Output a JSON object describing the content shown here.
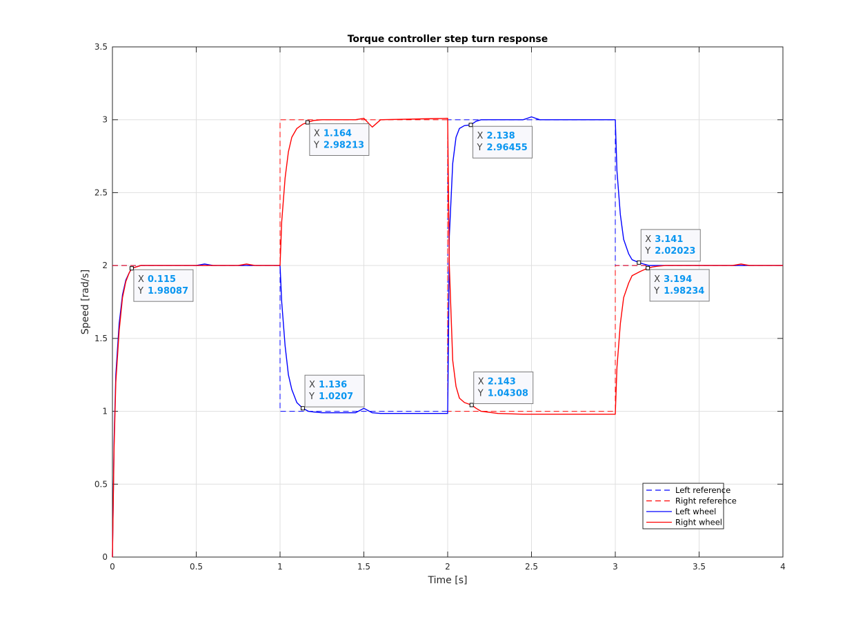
{
  "chart_data": {
    "type": "line",
    "title": "Torque controller step turn response",
    "xlabel": "Time [s]",
    "ylabel": "Speed [rad/s]",
    "xlim": [
      0,
      4
    ],
    "ylim": [
      0,
      3.5
    ],
    "xticks": [
      0,
      0.5,
      1,
      1.5,
      2,
      2.5,
      3,
      3.5,
      4
    ],
    "xtick_labels": [
      "0",
      "0.5",
      "1",
      "1.5",
      "2",
      "2.5",
      "3",
      "3.5",
      "4"
    ],
    "yticks": [
      0,
      0.5,
      1,
      1.5,
      2,
      2.5,
      3,
      3.5
    ],
    "ytick_labels": [
      "0",
      "0.5",
      "1",
      "1.5",
      "2",
      "2.5",
      "3",
      "3.5"
    ],
    "grid": true,
    "legend_position": "bottom-right",
    "series": [
      {
        "name": "Left reference",
        "color": "#0000ff",
        "style": "dashed",
        "x": [
          0,
          1,
          1,
          2,
          2,
          3,
          3,
          4
        ],
        "y": [
          2,
          2,
          1,
          1,
          3,
          3,
          2,
          2
        ]
      },
      {
        "name": "Right reference",
        "color": "#ff0000",
        "style": "dashed",
        "x": [
          0,
          1,
          1,
          2,
          2,
          3,
          3,
          4
        ],
        "y": [
          2,
          2,
          3,
          3,
          1,
          1,
          2,
          2
        ]
      },
      {
        "name": "Left wheel",
        "color": "#0000ff",
        "style": "solid",
        "x": [
          0,
          0.01,
          0.02,
          0.04,
          0.06,
          0.08,
          0.1,
          0.115,
          0.14,
          0.17,
          0.2,
          0.25,
          0.3,
          0.5,
          0.55,
          0.6,
          1.0,
          1.01,
          1.03,
          1.05,
          1.07,
          1.1,
          1.136,
          1.17,
          1.2,
          1.25,
          1.3,
          1.45,
          1.5,
          1.55,
          1.6,
          2.0,
          2.005,
          2.01,
          2.03,
          2.05,
          2.07,
          2.1,
          2.138,
          2.17,
          2.2,
          2.3,
          2.45,
          2.5,
          2.55,
          2.6,
          2.99,
          3.0,
          3.01,
          3.03,
          3.05,
          3.08,
          3.1,
          3.141,
          3.17,
          3.2,
          3.25,
          3.3,
          4.0
        ],
        "y": [
          0,
          0.8,
          1.25,
          1.6,
          1.8,
          1.9,
          1.95,
          1.98,
          1.99,
          2.0,
          2.0,
          2.0,
          2.0,
          2.0,
          2.01,
          2.0,
          2.0,
          1.75,
          1.45,
          1.25,
          1.15,
          1.06,
          1.02,
          1.0,
          0.995,
          0.99,
          0.99,
          0.99,
          1.02,
          0.99,
          0.985,
          0.985,
          1.5,
          2.2,
          2.7,
          2.88,
          2.94,
          2.96,
          2.965,
          2.99,
          3.0,
          3.0,
          3.0,
          3.02,
          3.0,
          3.0,
          3.0,
          3.0,
          2.65,
          2.35,
          2.18,
          2.08,
          2.04,
          2.02,
          2.01,
          2.0,
          2.0,
          2.0,
          2.0
        ]
      },
      {
        "name": "Right wheel",
        "color": "#ff0000",
        "style": "solid",
        "x": [
          0,
          0.01,
          0.02,
          0.04,
          0.06,
          0.08,
          0.1,
          0.115,
          0.14,
          0.17,
          0.2,
          0.25,
          0.3,
          0.5,
          0.55,
          0.6,
          0.75,
          0.8,
          0.85,
          1.0,
          1.01,
          1.03,
          1.05,
          1.07,
          1.1,
          1.136,
          1.164,
          1.2,
          1.25,
          1.3,
          1.45,
          1.5,
          1.55,
          1.6,
          2.0,
          2.005,
          2.01,
          2.03,
          2.05,
          2.07,
          2.1,
          2.143,
          2.17,
          2.2,
          2.3,
          2.45,
          2.5,
          2.55,
          2.99,
          3.0,
          3.01,
          3.03,
          3.05,
          3.08,
          3.1,
          3.15,
          3.194,
          3.22,
          3.25,
          3.3,
          3.7,
          3.75,
          3.8,
          4.0
        ],
        "y": [
          0,
          0.75,
          1.2,
          1.55,
          1.78,
          1.89,
          1.95,
          1.98,
          1.99,
          2.0,
          2.0,
          2.0,
          2.0,
          2.0,
          2.0,
          2.0,
          2.0,
          2.01,
          2.0,
          2.0,
          2.3,
          2.6,
          2.78,
          2.88,
          2.94,
          2.97,
          2.982,
          2.995,
          3.0,
          3.0,
          3.0,
          3.01,
          2.95,
          3.0,
          3.01,
          2.5,
          2.0,
          1.35,
          1.17,
          1.09,
          1.06,
          1.043,
          1.02,
          1.0,
          0.985,
          0.98,
          0.98,
          0.98,
          0.98,
          0.98,
          1.3,
          1.6,
          1.78,
          1.88,
          1.93,
          1.96,
          1.982,
          1.99,
          1.995,
          2.0,
          2.0,
          2.01,
          2.0,
          2.0
        ]
      }
    ],
    "annotations": [
      {
        "x_label": "X",
        "x_value": "0.115",
        "y_label": "Y",
        "y_value": "1.98087",
        "x": 0.115,
        "y": 1.98087,
        "placement": "below-right"
      },
      {
        "x_label": "X",
        "x_value": "1.136",
        "y_label": "Y",
        "y_value": "1.0207",
        "x": 1.136,
        "y": 1.0207,
        "placement": "above-right"
      },
      {
        "x_label": "X",
        "x_value": "1.164",
        "y_label": "Y",
        "y_value": "2.98213",
        "x": 1.164,
        "y": 2.98213,
        "placement": "below-right"
      },
      {
        "x_label": "X",
        "x_value": "2.138",
        "y_label": "Y",
        "y_value": "2.96455",
        "x": 2.138,
        "y": 2.96455,
        "placement": "below-right"
      },
      {
        "x_label": "X",
        "x_value": "2.143",
        "y_label": "Y",
        "y_value": "1.04308",
        "x": 2.143,
        "y": 1.04308,
        "placement": "above-right"
      },
      {
        "x_label": "X",
        "x_value": "3.141",
        "y_label": "Y",
        "y_value": "2.02023",
        "x": 3.141,
        "y": 2.02023,
        "placement": "above-right"
      },
      {
        "x_label": "X",
        "x_value": "3.194",
        "y_label": "Y",
        "y_value": "1.98234",
        "x": 3.194,
        "y": 1.98234,
        "placement": "below-right"
      }
    ],
    "colors": {
      "datatip_label": "#404040",
      "datatip_value": "#0a96f0",
      "grid": "#dfdfdf",
      "axis": "#262626"
    }
  }
}
